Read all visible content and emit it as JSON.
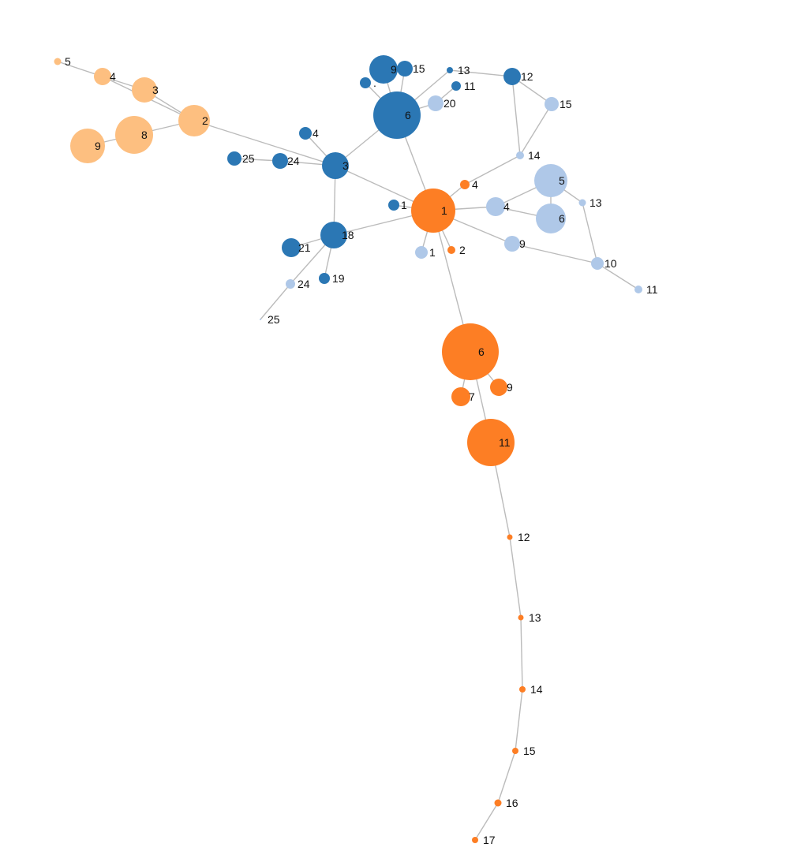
{
  "colors": {
    "group_light_orange": "#fdbf80",
    "group_dark_blue": "#2b77b4",
    "group_light_blue": "#afc8e8",
    "group_orange": "#fd7e24",
    "link": "#bbbbbb"
  },
  "nodes": [
    {
      "id": "o5",
      "label": "5",
      "group": "group_light_orange"
    },
    {
      "id": "o4",
      "label": "4",
      "group": "group_light_orange"
    },
    {
      "id": "o3",
      "label": "3",
      "group": "group_light_orange"
    },
    {
      "id": "o2",
      "label": "2",
      "group": "group_light_orange"
    },
    {
      "id": "o8",
      "label": "8",
      "group": "group_light_orange"
    },
    {
      "id": "o9",
      "label": "9",
      "group": "group_light_orange"
    },
    {
      "id": "b9",
      "label": "9",
      "group": "group_dark_blue"
    },
    {
      "id": "b15",
      "label": "15",
      "group": "group_dark_blue"
    },
    {
      "id": "b13",
      "label": "13",
      "group": "group_dark_blue"
    },
    {
      "id": "b11",
      "label": "11",
      "group": "group_dark_blue"
    },
    {
      "id": "b12",
      "label": "12",
      "group": "group_dark_blue"
    },
    {
      "id": "b6",
      "label": "6",
      "group": "group_dark_blue"
    },
    {
      "id": "bdot",
      "label": ".",
      "group": "group_dark_blue"
    },
    {
      "id": "b4",
      "label": "4",
      "group": "group_dark_blue"
    },
    {
      "id": "b25",
      "label": "25",
      "group": "group_dark_blue"
    },
    {
      "id": "b24",
      "label": "24",
      "group": "group_dark_blue"
    },
    {
      "id": "b3",
      "label": "3",
      "group": "group_dark_blue"
    },
    {
      "id": "b1",
      "label": "1",
      "group": "group_dark_blue"
    },
    {
      "id": "b18",
      "label": "18",
      "group": "group_dark_blue"
    },
    {
      "id": "b21",
      "label": "21",
      "group": "group_dark_blue"
    },
    {
      "id": "b19",
      "label": "19",
      "group": "group_dark_blue"
    },
    {
      "id": "l20",
      "label": "20",
      "group": "group_light_blue"
    },
    {
      "id": "l15",
      "label": "15",
      "group": "group_light_blue"
    },
    {
      "id": "l14",
      "label": "14",
      "group": "group_light_blue"
    },
    {
      "id": "l5",
      "label": "5",
      "group": "group_light_blue"
    },
    {
      "id": "l13",
      "label": "13",
      "group": "group_light_blue"
    },
    {
      "id": "l4",
      "label": "4",
      "group": "group_light_blue"
    },
    {
      "id": "l6",
      "label": "6",
      "group": "group_light_blue"
    },
    {
      "id": "l9",
      "label": "9",
      "group": "group_light_blue"
    },
    {
      "id": "l10",
      "label": "10",
      "group": "group_light_blue"
    },
    {
      "id": "l11",
      "label": "11",
      "group": "group_light_blue"
    },
    {
      "id": "l1",
      "label": "1",
      "group": "group_light_blue"
    },
    {
      "id": "l24",
      "label": "24",
      "group": "group_light_blue"
    },
    {
      "id": "l25",
      "label": "25",
      "group": "group_light_blue"
    },
    {
      "id": "r1",
      "label": "1",
      "group": "group_orange"
    },
    {
      "id": "r4",
      "label": "4",
      "group": "group_orange"
    },
    {
      "id": "r2",
      "label": "2",
      "group": "group_orange"
    },
    {
      "id": "r6",
      "label": "6",
      "group": "group_orange"
    },
    {
      "id": "r7",
      "label": "7",
      "group": "group_orange"
    },
    {
      "id": "r9",
      "label": "9",
      "group": "group_orange"
    },
    {
      "id": "r11",
      "label": "11",
      "group": "group_orange"
    },
    {
      "id": "r12",
      "label": "12",
      "group": "group_orange"
    },
    {
      "id": "r13",
      "label": "13",
      "group": "group_orange"
    },
    {
      "id": "r14",
      "label": "14",
      "group": "group_orange"
    },
    {
      "id": "r15",
      "label": "15",
      "group": "group_orange"
    },
    {
      "id": "r16",
      "label": "16",
      "group": "group_orange"
    },
    {
      "id": "r17",
      "label": "17",
      "group": "group_orange"
    }
  ],
  "links": [
    [
      "o5",
      "o4"
    ],
    [
      "o4",
      "o3"
    ],
    [
      "o4",
      "o2"
    ],
    [
      "o3",
      "o2"
    ],
    [
      "o2",
      "o8"
    ],
    [
      "o8",
      "o9"
    ],
    [
      "o2",
      "b3"
    ],
    [
      "b9",
      "b6"
    ],
    [
      "b15",
      "b6"
    ],
    [
      "bdot",
      "b6"
    ],
    [
      "b13",
      "b6"
    ],
    [
      "b13",
      "b12"
    ],
    [
      "b11",
      "l20"
    ],
    [
      "l20",
      "b6"
    ],
    [
      "b12",
      "l15"
    ],
    [
      "b12",
      "l14"
    ],
    [
      "l15",
      "l14"
    ],
    [
      "l14",
      "r4"
    ],
    [
      "b6",
      "b3"
    ],
    [
      "b6",
      "r1"
    ],
    [
      "b4",
      "b3"
    ],
    [
      "b25",
      "b24"
    ],
    [
      "b24",
      "b3"
    ],
    [
      "b3",
      "r1"
    ],
    [
      "b3",
      "b18"
    ],
    [
      "b1",
      "r1"
    ],
    [
      "b18",
      "r1"
    ],
    [
      "b18",
      "b21"
    ],
    [
      "b18",
      "b19"
    ],
    [
      "b18",
      "l24"
    ],
    [
      "l24",
      "l25"
    ],
    [
      "r1",
      "r4"
    ],
    [
      "r1",
      "r2"
    ],
    [
      "r1",
      "l1"
    ],
    [
      "r1",
      "l4"
    ],
    [
      "r1",
      "l9"
    ],
    [
      "r1",
      "r6"
    ],
    [
      "l4",
      "l5"
    ],
    [
      "l4",
      "l6"
    ],
    [
      "l5",
      "l6"
    ],
    [
      "l5",
      "l13"
    ],
    [
      "l13",
      "l10"
    ],
    [
      "l9",
      "l10"
    ],
    [
      "l10",
      "l11"
    ],
    [
      "r6",
      "r7"
    ],
    [
      "r6",
      "r9"
    ],
    [
      "r6",
      "r11"
    ],
    [
      "r11",
      "r12"
    ],
    [
      "r12",
      "r13"
    ],
    [
      "r13",
      "r14"
    ],
    [
      "r14",
      "r15"
    ],
    [
      "r15",
      "r16"
    ],
    [
      "r16",
      "r17"
    ]
  ]
}
